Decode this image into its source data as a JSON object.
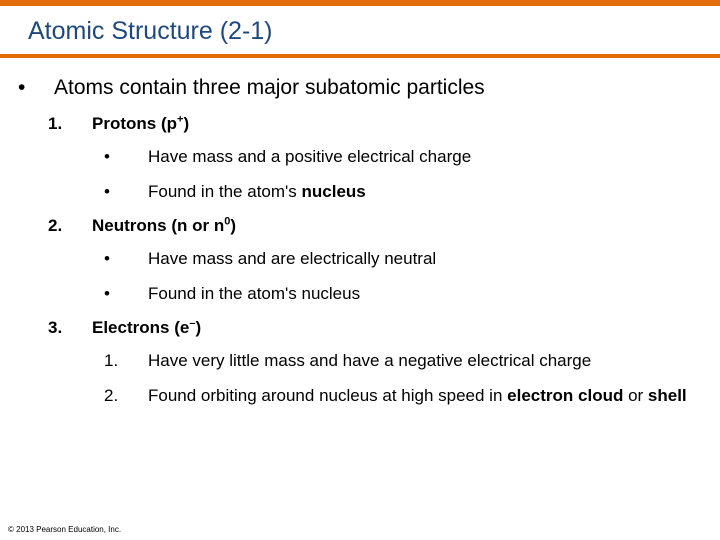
{
  "colors": {
    "accent": "#e36c0a",
    "title": "#1f497d",
    "text": "#000000",
    "background": "#ffffff"
  },
  "typography": {
    "title_fontsize": 25,
    "body_fontsize": 21,
    "sub_fontsize": 17,
    "copyright_fontsize": 8,
    "family": "Arial"
  },
  "title": "Atomic Structure (2-1)",
  "main_point_bullet": "•",
  "main_point": "Atoms contain three major subatomic particles",
  "items": [
    {
      "num": "1.",
      "label_pre": "Protons (p",
      "label_sup": "+",
      "label_post": ")",
      "sub_style": "bullet",
      "subs": [
        {
          "mark": "•",
          "text_pre": "Have mass and a positive electrical charge",
          "bold1": "",
          "mid": "",
          "bold2": "",
          "post": ""
        },
        {
          "mark": "•",
          "text_pre": "Found in the atom's ",
          "bold1": "nucleus",
          "mid": "",
          "bold2": "",
          "post": ""
        }
      ]
    },
    {
      "num": "2.",
      "label_pre": "Neutrons (n or n",
      "label_sup": "0",
      "label_post": ")",
      "sub_style": "bullet",
      "subs": [
        {
          "mark": "•",
          "text_pre": "Have mass and are electrically neutral",
          "bold1": "",
          "mid": "",
          "bold2": "",
          "post": ""
        },
        {
          "mark": "•",
          "text_pre": "Found in the atom's nucleus",
          "bold1": "",
          "mid": "",
          "bold2": "",
          "post": ""
        }
      ]
    },
    {
      "num": "3.",
      "label_pre": "Electrons (e",
      "label_sup": "–",
      "label_post": ")",
      "sub_style": "number",
      "subs": [
        {
          "mark": "1.",
          "text_pre": "Have very little mass and have a negative electrical charge",
          "bold1": "",
          "mid": "",
          "bold2": "",
          "post": ""
        },
        {
          "mark": "2.",
          "text_pre": "Found orbiting around nucleus at high speed in ",
          "bold1": "electron cloud",
          "mid": " or ",
          "bold2": "shell",
          "post": ""
        }
      ]
    }
  ],
  "copyright": "© 2013 Pearson Education, Inc."
}
